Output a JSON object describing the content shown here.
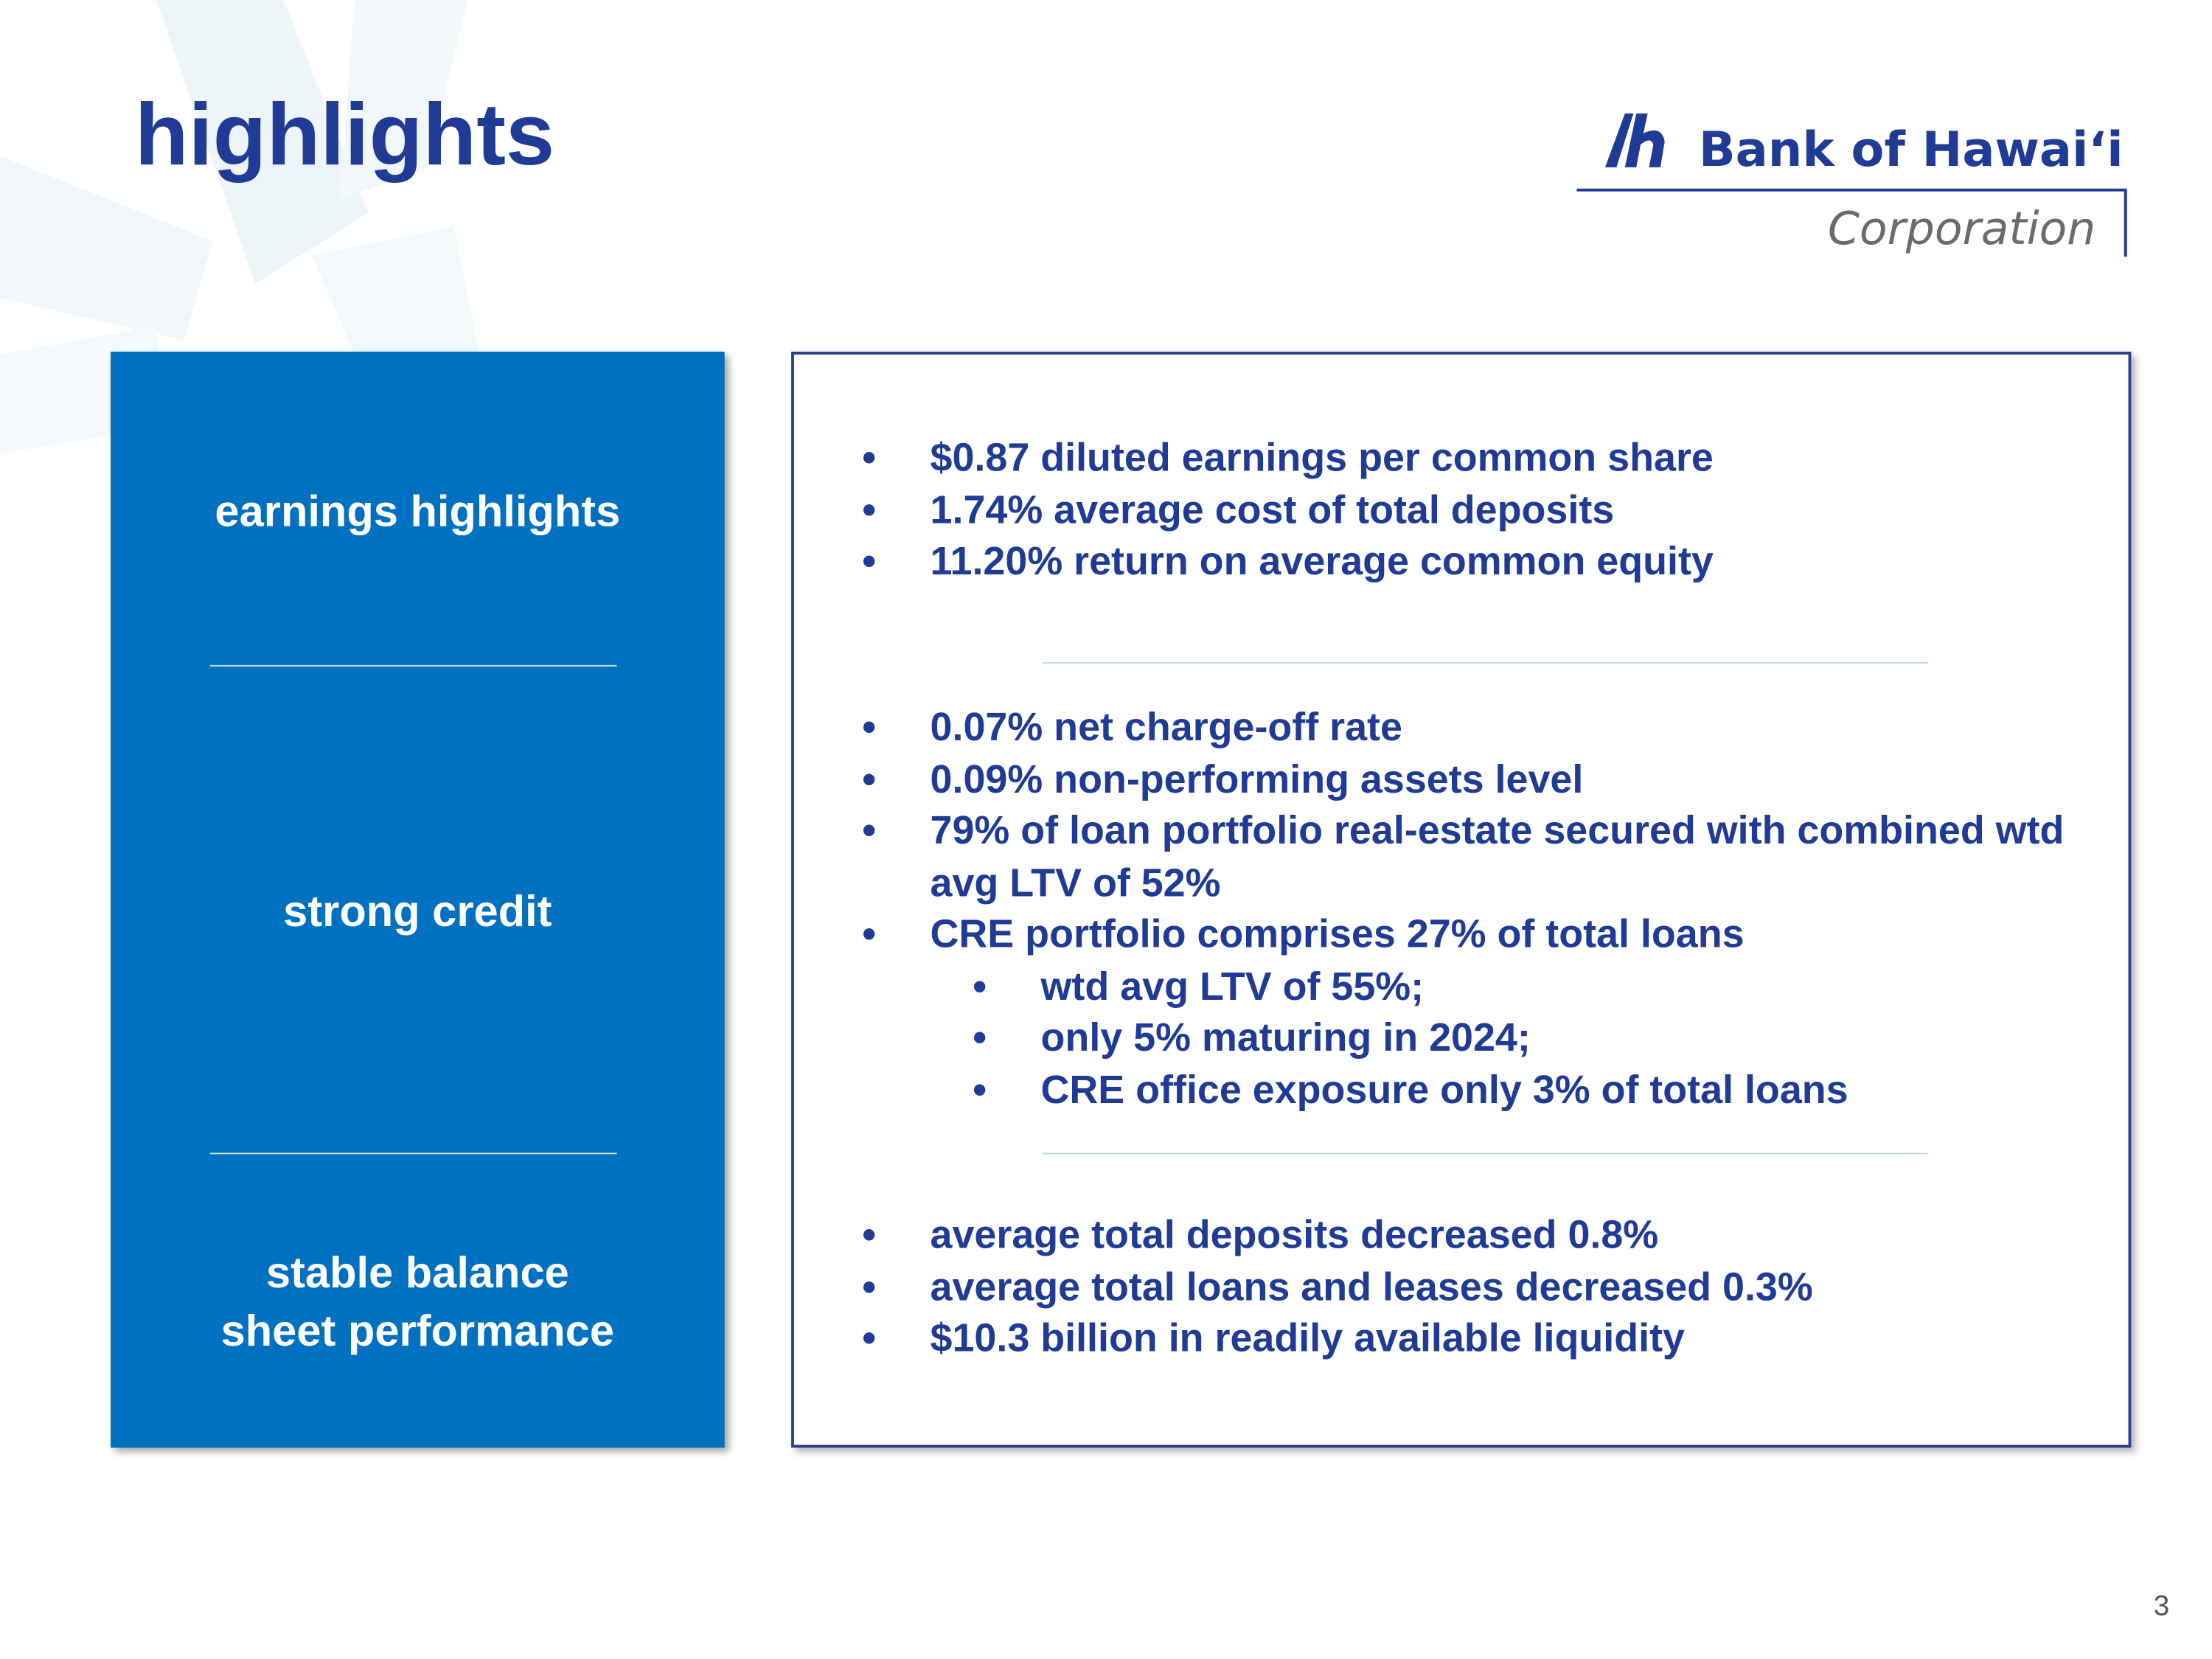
{
  "header": {
    "title": "highlights",
    "logo": {
      "name": "Bank of Hawaiʻi",
      "subtitle": "Corporation"
    }
  },
  "sections": [
    {
      "label": "earnings highlights",
      "bullets": [
        {
          "text": "$0.87 diluted earnings per common share"
        },
        {
          "text": "1.74% average cost of total deposits"
        },
        {
          "text": "11.20% return on average common equity"
        }
      ]
    },
    {
      "label": "strong credit",
      "bullets": [
        {
          "text": "0.07% net charge-off rate"
        },
        {
          "text": "0.09% non-performing assets level"
        },
        {
          "text": "79% of loan portfolio real-estate secured with combined wtd avg LTV of 52%"
        },
        {
          "text": "CRE portfolio comprises 27% of total loans",
          "sub_bullets": [
            "wtd avg LTV of 55%;",
            "only 5% maturing in 2024;",
            "CRE office exposure only 3% of total loans"
          ]
        }
      ]
    },
    {
      "label": "stable balance sheet performance",
      "bullets": [
        {
          "text": "average total deposits decreased 0.8%"
        },
        {
          "text": "average total loans and leases decreased 0.3%"
        },
        {
          "text": "$10.3 billion in readily available liquidity"
        }
      ]
    }
  ],
  "page_number": 3
}
